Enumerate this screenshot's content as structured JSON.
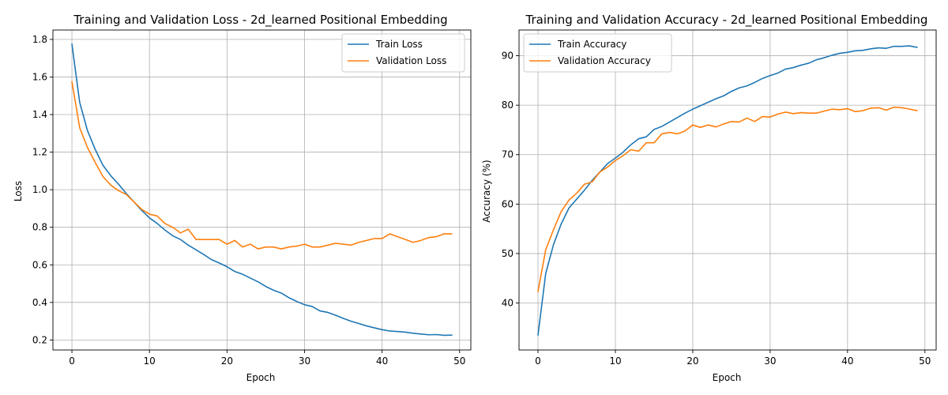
{
  "chart_data": [
    {
      "type": "line",
      "title": "Training and Validation Loss - 2d_learned Positional Embedding",
      "xlabel": "Epoch",
      "ylabel": "Loss",
      "xlim": [
        -2.45,
        51.45
      ],
      "ylim": [
        0.147,
        1.85
      ],
      "xticks": [
        0,
        10,
        20,
        30,
        40,
        50
      ],
      "yticks": [
        0.2,
        0.4,
        0.6,
        0.8,
        1.0,
        1.2,
        1.4,
        1.6,
        1.8
      ],
      "ytick_decimals": 1,
      "grid": true,
      "legend_position": "top-right",
      "series": [
        {
          "name": "Train Loss",
          "color": "#1f77b4",
          "values": [
            1.775,
            1.465,
            1.315,
            1.215,
            1.13,
            1.075,
            1.03,
            0.98,
            0.935,
            0.89,
            0.85,
            0.82,
            0.785,
            0.755,
            0.735,
            0.705,
            0.68,
            0.655,
            0.628,
            0.61,
            0.59,
            0.565,
            0.55,
            0.53,
            0.51,
            0.485,
            0.465,
            0.45,
            0.425,
            0.405,
            0.388,
            0.378,
            0.355,
            0.347,
            0.332,
            0.315,
            0.3,
            0.288,
            0.275,
            0.265,
            0.255,
            0.248,
            0.245,
            0.242,
            0.236,
            0.232,
            0.228,
            0.229,
            0.225,
            0.226
          ]
        },
        {
          "name": "Validation Loss",
          "color": "#ff7f0e",
          "values": [
            1.575,
            1.33,
            1.225,
            1.145,
            1.07,
            1.025,
            0.995,
            0.975,
            0.935,
            0.895,
            0.87,
            0.86,
            0.82,
            0.8,
            0.77,
            0.79,
            0.735,
            0.735,
            0.735,
            0.735,
            0.71,
            0.73,
            0.695,
            0.71,
            0.685,
            0.695,
            0.695,
            0.685,
            0.695,
            0.7,
            0.71,
            0.695,
            0.695,
            0.705,
            0.715,
            0.71,
            0.705,
            0.72,
            0.73,
            0.74,
            0.74,
            0.765,
            0.75,
            0.735,
            0.72,
            0.73,
            0.745,
            0.75,
            0.765,
            0.765
          ]
        }
      ]
    },
    {
      "type": "line",
      "title": "Training and Validation Accuracy - 2d_learned Positional Embedding",
      "xlabel": "Epoch",
      "ylabel": "Accuracy (%)",
      "xlim": [
        -2.45,
        51.45
      ],
      "ylim": [
        30.5,
        95.2
      ],
      "xticks": [
        0,
        10,
        20,
        30,
        40,
        50
      ],
      "yticks": [
        40,
        50,
        60,
        70,
        80,
        90
      ],
      "ytick_decimals": 0,
      "grid": true,
      "legend_position": "top-left",
      "series": [
        {
          "name": "Train Accuracy",
          "color": "#1f77b4",
          "values": [
            33.5,
            46.0,
            51.8,
            56.0,
            59.2,
            61.0,
            62.8,
            64.8,
            66.5,
            68.2,
            69.3,
            70.5,
            72.0,
            73.2,
            73.6,
            75.1,
            75.7,
            76.6,
            77.5,
            78.4,
            79.2,
            79.9,
            80.6,
            81.3,
            81.9,
            82.8,
            83.5,
            83.9,
            84.6,
            85.4,
            86.0,
            86.5,
            87.3,
            87.6,
            88.1,
            88.5,
            89.2,
            89.6,
            90.1,
            90.5,
            90.7,
            91.0,
            91.1,
            91.4,
            91.6,
            91.5,
            91.9,
            91.9,
            92.0,
            91.7
          ]
        },
        {
          "name": "Validation Accuracy",
          "color": "#ff7f0e",
          "values": [
            42.3,
            50.8,
            54.8,
            58.5,
            60.8,
            62.2,
            64.0,
            64.5,
            66.5,
            67.5,
            68.8,
            69.8,
            71.0,
            70.7,
            72.4,
            72.4,
            74.2,
            74.5,
            74.2,
            74.8,
            76.0,
            75.5,
            76.0,
            75.6,
            76.2,
            76.7,
            76.6,
            77.4,
            76.7,
            77.7,
            77.6,
            78.2,
            78.6,
            78.3,
            78.5,
            78.4,
            78.4,
            78.8,
            79.2,
            79.1,
            79.3,
            78.7,
            78.9,
            79.4,
            79.5,
            79.0,
            79.6,
            79.5,
            79.2,
            78.9
          ]
        }
      ]
    }
  ]
}
